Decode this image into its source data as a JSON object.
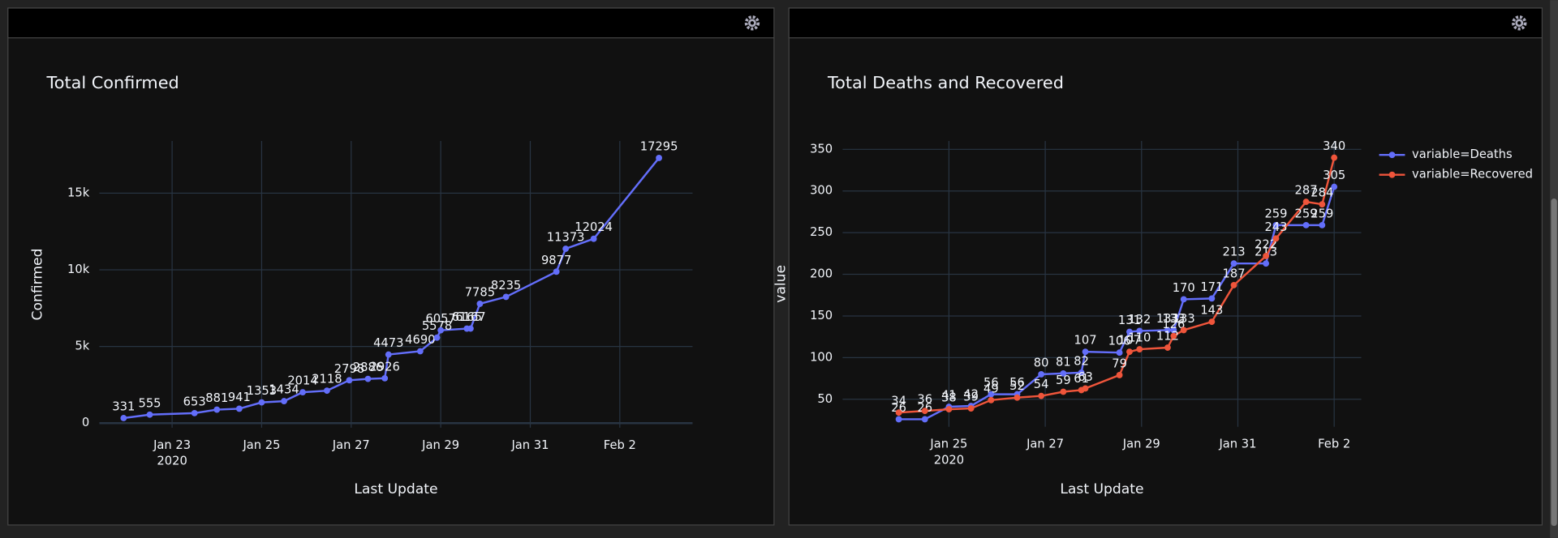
{
  "chart_data": [
    {
      "type": "line",
      "title": "Total Confirmed",
      "x_label": "Last Update",
      "y_label": "Confirmed",
      "x_tick_year": "2020",
      "x": [
        "2020-01-21T22:00",
        "2020-01-22T12:00",
        "2020-01-23T12:00",
        "2020-01-24T00:00",
        "2020-01-24T12:00",
        "2020-01-25T00:00",
        "2020-01-25T12:00",
        "2020-01-25T22:00",
        "2020-01-26T11:00",
        "2020-01-26T23:00",
        "2020-01-27T09:00",
        "2020-01-27T18:00",
        "2020-01-27T20:00",
        "2020-01-28T13:00",
        "2020-01-28T22:00",
        "2020-01-29T00:00",
        "2020-01-29T14:00",
        "2020-01-29T16:00",
        "2020-01-29T21:00",
        "2020-01-30T11:00",
        "2020-01-31T14:00",
        "2020-01-31T19:00",
        "2020-02-01T10:00",
        "2020-02-02T21:00"
      ],
      "values": [
        331,
        555,
        653,
        881,
        941,
        1353,
        1434,
        2014,
        2118,
        2798,
        2886,
        2926,
        4473,
        4690,
        5578,
        6057,
        6165,
        6167,
        7785,
        8235,
        9877,
        11373,
        12024,
        17295
      ],
      "color": "#636efa",
      "xlim": [
        "2020-01-21T09:00",
        "2020-02-03T15:00"
      ],
      "xticks": [
        {
          "value": "2020-01-23T00:00",
          "label": "Jan 23"
        },
        {
          "value": "2020-01-25T00:00",
          "label": "Jan 25"
        },
        {
          "value": "2020-01-27T00:00",
          "label": "Jan 27"
        },
        {
          "value": "2020-01-29T00:00",
          "label": "Jan 29"
        },
        {
          "value": "2020-01-31T00:00",
          "label": "Jan 31"
        },
        {
          "value": "2020-02-02T00:00",
          "label": "Feb 2"
        }
      ],
      "ylim": [
        -300,
        18400
      ],
      "yticks": [
        0,
        {
          "value": 5000,
          "label": "5k"
        },
        {
          "value": 10000,
          "label": "10k"
        },
        {
          "value": 15000,
          "label": "15k"
        }
      ],
      "grid": true
    },
    {
      "type": "line",
      "title": "Total Deaths and Recovered",
      "x_label": "Last Update",
      "y_label": "value",
      "x_tick_year": "2020",
      "x": [
        "2020-01-23T23:00",
        "2020-01-24T12:00",
        "2020-01-25T00:00",
        "2020-01-25T11:00",
        "2020-01-25T21:00",
        "2020-01-26T10:00",
        "2020-01-26T22:00",
        "2020-01-27T09:00",
        "2020-01-27T18:00",
        "2020-01-27T20:00",
        "2020-01-28T13:00",
        "2020-01-28T18:00",
        "2020-01-28T23:00",
        "2020-01-29T13:00",
        "2020-01-29T16:00",
        "2020-01-29T21:00",
        "2020-01-30T11:00",
        "2020-01-30T22:00",
        "2020-01-31T14:00",
        "2020-01-31T19:00",
        "2020-02-01T10:00",
        "2020-02-01T18:00",
        "2020-02-02T00:00"
      ],
      "series": [
        {
          "name": "variable=Deaths",
          "color": "#636efa",
          "values": [
            26,
            26,
            41,
            42,
            56,
            56,
            80,
            81,
            82,
            107,
            106,
            131,
            132,
            133,
            133,
            170,
            171,
            213,
            213,
            259,
            259,
            259,
            305
          ]
        },
        {
          "name": "variable=Recovered",
          "color": "#ef553b",
          "values": [
            34,
            36,
            38,
            39,
            49,
            52,
            54,
            59,
            61,
            63,
            79,
            107,
            110,
            112,
            126,
            133,
            143,
            187,
            222,
            243,
            287,
            284,
            340
          ]
        }
      ],
      "xlim": [
        "2020-01-22T19:00",
        "2020-02-02T13:30"
      ],
      "xticks": [
        {
          "value": "2020-01-25T00:00",
          "label": "Jan 25"
        },
        {
          "value": "2020-01-27T00:00",
          "label": "Jan 27"
        },
        {
          "value": "2020-01-29T00:00",
          "label": "Jan 29"
        },
        {
          "value": "2020-01-31T00:00",
          "label": "Jan 31"
        },
        {
          "value": "2020-02-02T00:00",
          "label": "Feb 2"
        }
      ],
      "ylim": [
        17,
        360
      ],
      "yticks": [
        50,
        100,
        150,
        200,
        250,
        300,
        350
      ],
      "grid": true,
      "legend": "top-right"
    }
  ]
}
